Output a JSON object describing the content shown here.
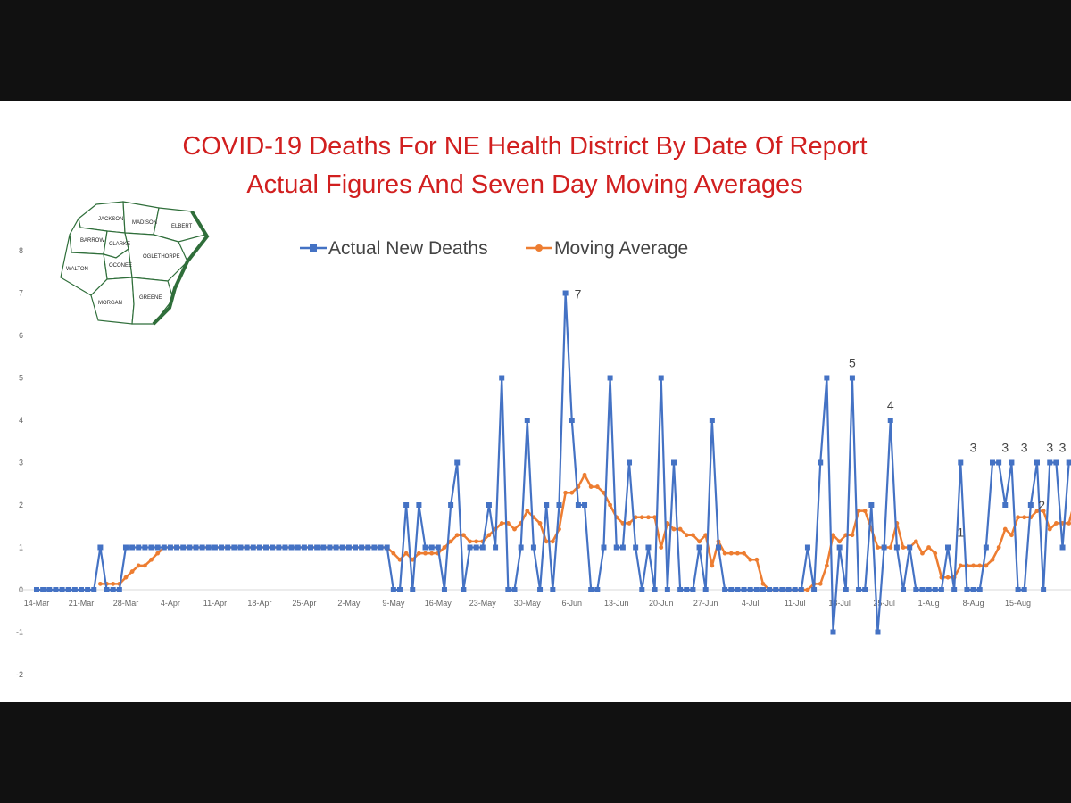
{
  "colors": {
    "actual": "#4472c4",
    "moving_average": "#ed7d31",
    "title": "#d11f1f",
    "frame": "#111111"
  },
  "map": {
    "icon": "ne-health-district-county-map",
    "counties": [
      "JACKSON",
      "MADISON",
      "ELBERT",
      "BARROW",
      "CLARKE",
      "OCONEE",
      "OGLETHORPE",
      "WALTON",
      "MORGAN",
      "GREENE"
    ]
  },
  "chart_data": {
    "type": "line",
    "title": "COVID-19 Deaths For NE Health District By Date Of Report",
    "subtitle": "Actual Figures And Seven Day Moving Averages",
    "x_start": "14-Mar",
    "x_ticks": [
      "14-Mar",
      "21-Mar",
      "28-Mar",
      "4-Apr",
      "11-Apr",
      "18-Apr",
      "25-Apr",
      "2-May",
      "9-May",
      "16-May",
      "23-May",
      "30-May",
      "6-Jun",
      "13-Jun",
      "20-Jun",
      "27-Jun",
      "4-Jul",
      "11-Jul",
      "18-Jul",
      "25-Jul",
      "1-Aug",
      "8-Aug",
      "15-Aug"
    ],
    "y_ticks": [
      "8",
      "7",
      "6",
      "5",
      "4",
      "3",
      "2",
      "1",
      "0",
      "-1",
      "-2"
    ],
    "ylim": [
      -2,
      8
    ],
    "grid": false,
    "legend_position": "top",
    "series": [
      {
        "name": "Actual New Deaths",
        "values": [
          0,
          0,
          0,
          0,
          0,
          0,
          0,
          0,
          0,
          0,
          1,
          0,
          0,
          0,
          1,
          1,
          1,
          1,
          1,
          1,
          1,
          1,
          1,
          1,
          1,
          1,
          1,
          1,
          1,
          1,
          1,
          1,
          1,
          1,
          1,
          1,
          1,
          1,
          1,
          1,
          1,
          1,
          1,
          1,
          1,
          1,
          1,
          1,
          1,
          1,
          1,
          1,
          1,
          1,
          1,
          1,
          0,
          0,
          2,
          0,
          2,
          1,
          1,
          1,
          0,
          2,
          3,
          0,
          1,
          1,
          1,
          2,
          1,
          5,
          0,
          0,
          1,
          4,
          1,
          0,
          2,
          0,
          2,
          7,
          4,
          2,
          2,
          0,
          0,
          1,
          5,
          1,
          1,
          3,
          1,
          0,
          1,
          0,
          5,
          0,
          3,
          0,
          0,
          0,
          1,
          0,
          4,
          1,
          0,
          0,
          0,
          0,
          0,
          0,
          0,
          0,
          0,
          0,
          0,
          0,
          0,
          1,
          0,
          3,
          5,
          -1,
          1,
          0,
          5,
          0,
          0,
          2,
          -1,
          1,
          4,
          1,
          0,
          1,
          0,
          0,
          0,
          0,
          0,
          1,
          0,
          3,
          0,
          0,
          0,
          1,
          3,
          3,
          2,
          3,
          0,
          0,
          2,
          3,
          0,
          3,
          3,
          1,
          3
        ]
      },
      {
        "name": "Moving Average",
        "start_index": 10,
        "values": [
          0.14,
          0.14,
          0.14,
          0.14,
          0.29,
          0.43,
          0.57,
          0.57,
          0.71,
          0.86,
          1,
          1,
          1,
          1,
          1,
          1,
          1,
          1,
          1,
          1,
          1,
          1,
          1,
          1,
          1,
          1,
          1,
          1,
          1,
          1,
          1,
          1,
          1,
          1,
          1,
          1,
          1,
          1,
          1,
          1,
          1,
          1,
          1,
          1,
          1,
          1,
          0.86,
          0.71,
          0.86,
          0.71,
          0.86,
          0.86,
          0.86,
          0.86,
          1,
          1.14,
          1.29,
          1.29,
          1.14,
          1.14,
          1.14,
          1.29,
          1.43,
          1.57,
          1.57,
          1.43,
          1.57,
          1.86,
          1.71,
          1.57,
          1.14,
          1.14,
          1.43,
          2.29,
          2.29,
          2.43,
          2.71,
          2.43,
          2.43,
          2.29,
          2,
          1.71,
          1.57,
          1.57,
          1.71,
          1.71,
          1.71,
          1.71,
          1,
          1.57,
          1.43,
          1.43,
          1.29,
          1.29,
          1.14,
          1.29,
          0.57,
          1.14,
          0.86,
          0.86,
          0.86,
          0.86,
          0.71,
          0.71,
          0.14,
          0,
          0,
          0,
          0,
          0,
          0,
          0,
          0.14,
          0.14,
          0.57,
          1.29,
          1.14,
          1.29,
          1.29,
          1.86,
          1.86,
          1.43,
          1,
          1,
          1,
          1.57,
          1,
          1,
          1.14,
          0.86,
          1,
          0.86,
          0.29,
          0.29,
          0.29,
          0.57,
          0.57,
          0.57,
          0.57,
          0.57,
          0.71,
          1,
          1.43,
          1.29,
          1.71,
          1.71,
          1.71,
          1.86,
          1.86,
          1.43,
          1.57,
          1.57,
          1.57,
          2.14
        ]
      }
    ],
    "annotations": [
      {
        "x_index": 83,
        "value": 7,
        "label": "7"
      },
      {
        "x_index": 128,
        "value": 5,
        "label": "5"
      },
      {
        "x_index": 134,
        "value": 4,
        "label": "4"
      },
      {
        "x_index": 145,
        "value": 1,
        "label": "1"
      },
      {
        "x_index": 147,
        "value": 3,
        "label": "3"
      },
      {
        "x_index": 152,
        "value": 3,
        "label": "3"
      },
      {
        "x_index": 155,
        "value": 3,
        "label": "3"
      },
      {
        "x_index": 159,
        "value": 3,
        "label": "3"
      },
      {
        "x_index": 161,
        "value": 3,
        "label": "3"
      },
      {
        "x_index": 158,
        "value": 2,
        "label": "2"
      }
    ]
  }
}
